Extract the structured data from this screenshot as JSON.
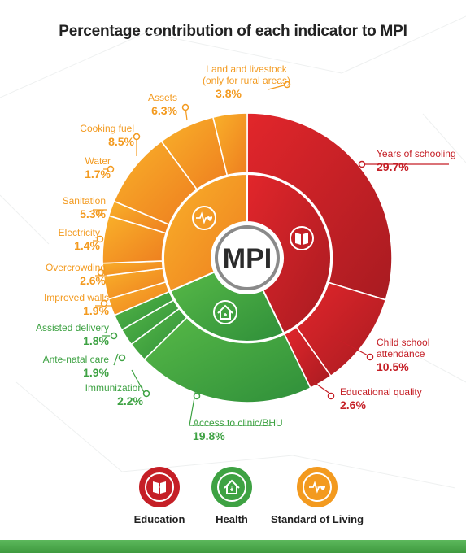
{
  "chart_data": {
    "type": "pie",
    "title": "Percentage contribution of each indicator to MPI",
    "center_label": "MPI",
    "groups": [
      {
        "name": "Education",
        "color": "#c51f26",
        "icon": "book-icon"
      },
      {
        "name": "Health",
        "color": "#3ea243",
        "icon": "house-health-icon"
      },
      {
        "name": "Standard of Living",
        "color": "#f39a1f",
        "icon": "heartbeat-icon"
      }
    ],
    "slices": [
      {
        "label": "Years of schooling",
        "value": "29.7%",
        "pct": 29.7,
        "group": "Education"
      },
      {
        "label": "Child school attendance",
        "value": "10.5%",
        "pct": 10.5,
        "group": "Education"
      },
      {
        "label": "Educational quality",
        "value": "2.6%",
        "pct": 2.6,
        "group": "Education"
      },
      {
        "label": "Access to clinic/BHU",
        "value": "19.8%",
        "pct": 19.8,
        "group": "Health"
      },
      {
        "label": "Immunization",
        "value": "2.2%",
        "pct": 2.2,
        "group": "Health"
      },
      {
        "label": "Ante-natal care",
        "value": "1.9%",
        "pct": 1.9,
        "group": "Health"
      },
      {
        "label": "Assisted delivery",
        "value": "1.8%",
        "pct": 1.8,
        "group": "Health"
      },
      {
        "label": "Improved walls",
        "value": "1.9%",
        "pct": 1.9,
        "group": "Standard of Living"
      },
      {
        "label": "Overcrowding",
        "value": "2.6%",
        "pct": 2.6,
        "group": "Standard of Living"
      },
      {
        "label": "Electricity",
        "value": "1.4%",
        "pct": 1.4,
        "group": "Standard of Living"
      },
      {
        "label": "Sanitation",
        "value": "5.3%",
        "pct": 5.3,
        "group": "Standard of Living"
      },
      {
        "label": "Water",
        "value": "1.7%",
        "pct": 1.7,
        "group": "Standard of Living"
      },
      {
        "label": "Cooking fuel",
        "value": "8.5%",
        "pct": 8.5,
        "group": "Standard of Living"
      },
      {
        "label": "Assets",
        "value": "6.3%",
        "pct": 6.3,
        "group": "Standard of Living"
      },
      {
        "label": "Land and livestock (only for rural areas)",
        "value": "3.8%",
        "pct": 3.8,
        "group": "Standard of Living"
      }
    ],
    "legend_placement": "bottom"
  }
}
